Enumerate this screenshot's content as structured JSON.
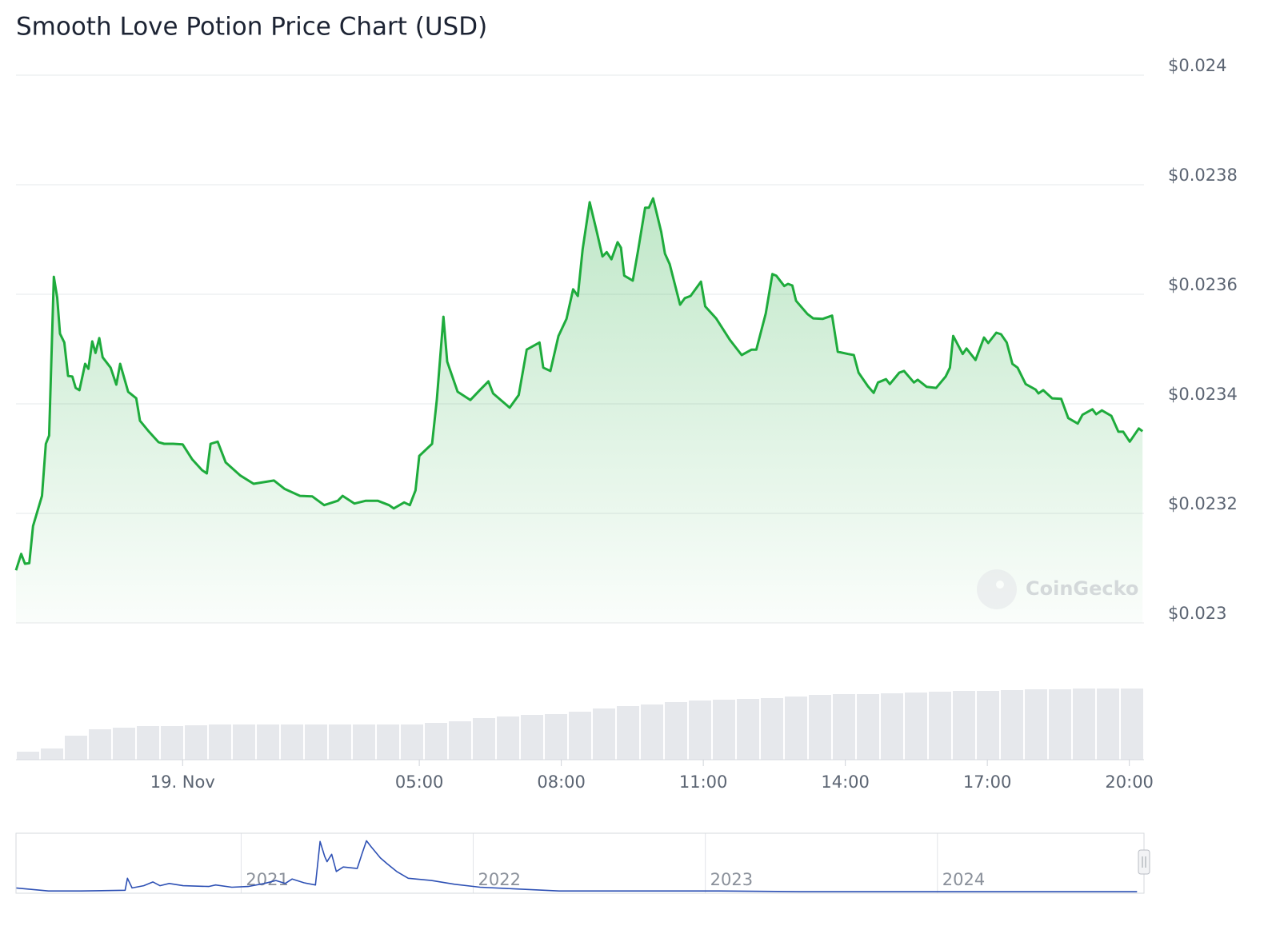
{
  "chart_data": {
    "type": "line",
    "title": "Smooth Love Potion Price Chart (USD)",
    "color": "#1eab3c",
    "xlim": [
      -3.52,
      20.31
    ],
    "ylim": [
      0.023,
      0.024
    ],
    "yticks": [
      {
        "value": 0.023,
        "label": "$0.023"
      },
      {
        "value": 0.0232,
        "label": "$0.0232"
      },
      {
        "value": 0.0234,
        "label": "$0.0234"
      },
      {
        "value": 0.0236,
        "label": "$0.0236"
      },
      {
        "value": 0.0238,
        "label": "$0.0238"
      },
      {
        "value": 0.024,
        "label": "$0.024"
      }
    ],
    "xticks": [
      {
        "value": 0,
        "label": "19. Nov"
      },
      {
        "value": 5,
        "label": "05:00"
      },
      {
        "value": 8,
        "label": "08:00"
      },
      {
        "value": 11,
        "label": "11:00"
      },
      {
        "value": 14,
        "label": "14:00"
      },
      {
        "value": 17,
        "label": "17:00"
      },
      {
        "value": 20,
        "label": "20:00"
      }
    ],
    "grid": true,
    "x": [
      -3.52,
      -3.41,
      -3.33,
      -3.24,
      -3.16,
      -2.97,
      -2.89,
      -2.82,
      -2.72,
      -2.65,
      -2.59,
      -2.5,
      -2.42,
      -2.33,
      -2.26,
      -2.18,
      -2.06,
      -1.99,
      -1.91,
      -1.84,
      -1.76,
      -1.69,
      -1.52,
      -1.4,
      -1.32,
      -1.15,
      -0.98,
      -0.9,
      -0.71,
      -0.51,
      -0.39,
      -0.2,
      0,
      0.2,
      0.41,
      0.51,
      0.59,
      0.74,
      0.91,
      1.22,
      1.5,
      1.93,
      2.15,
      2.48,
      2.74,
      2.99,
      3.28,
      3.38,
      3.63,
      3.87,
      4.12,
      4.36,
      4.46,
      4.68,
      4.8,
      4.92,
      5,
      5.27,
      5.37,
      5.51,
      5.59,
      5.81,
      6.08,
      6.29,
      6.46,
      6.56,
      6.91,
      7.1,
      7.27,
      7.54,
      7.62,
      7.77,
      7.94,
      8.11,
      8.25,
      8.35,
      8.45,
      8.6,
      8.75,
      8.87,
      8.96,
      9.06,
      9.19,
      9.26,
      9.33,
      9.51,
      9.62,
      9.77,
      9.85,
      9.94,
      10.11,
      10.19,
      10.29,
      10.51,
      10.61,
      10.73,
      10.95,
      11.04,
      11.27,
      11.56,
      11.81,
      12.02,
      12.12,
      12.32,
      12.46,
      12.54,
      12.71,
      12.79,
      12.88,
      12.96,
      13.2,
      13.32,
      13.52,
      13.72,
      13.84,
      14.06,
      14.18,
      14.28,
      14.48,
      14.6,
      14.69,
      14.86,
      14.94,
      15.14,
      15.24,
      15.45,
      15.53,
      15.72,
      15.92,
      16.12,
      16.21,
      16.28,
      16.48,
      16.56,
      16.75,
      16.93,
      17.02,
      17.19,
      17.29,
      17.41,
      17.53,
      17.64,
      17.81,
      18.02,
      18.08,
      18.18,
      18.37,
      18.56,
      18.71,
      18.91,
      19.01,
      19.22,
      19.3,
      19.42,
      19.62,
      19.77,
      19.87,
      20.01,
      20.2,
      20.28
    ],
    "values": [
      0.023096,
      0.023126,
      0.023108,
      0.023109,
      0.023177,
      0.023232,
      0.023327,
      0.023342,
      0.023632,
      0.023594,
      0.023528,
      0.023512,
      0.023451,
      0.02345,
      0.023429,
      0.023425,
      0.023473,
      0.023464,
      0.023514,
      0.023493,
      0.02352,
      0.023485,
      0.023466,
      0.023435,
      0.023473,
      0.023422,
      0.02341,
      0.023369,
      0.023349,
      0.02333,
      0.023327,
      0.023327,
      0.023326,
      0.023299,
      0.023279,
      0.023273,
      0.023327,
      0.023331,
      0.023293,
      0.023269,
      0.023254,
      0.02326,
      0.023245,
      0.023232,
      0.023231,
      0.023215,
      0.023223,
      0.023232,
      0.023218,
      0.023223,
      0.023223,
      0.023215,
      0.023209,
      0.02322,
      0.023215,
      0.023242,
      0.023305,
      0.023327,
      0.023407,
      0.023559,
      0.023477,
      0.023422,
      0.023407,
      0.023426,
      0.023441,
      0.023419,
      0.023393,
      0.023416,
      0.023499,
      0.023512,
      0.023466,
      0.02346,
      0.023524,
      0.023555,
      0.023609,
      0.023597,
      0.023682,
      0.023768,
      0.023714,
      0.023669,
      0.023677,
      0.023664,
      0.023695,
      0.023685,
      0.023634,
      0.023625,
      0.023679,
      0.023758,
      0.023758,
      0.023775,
      0.023714,
      0.023674,
      0.023655,
      0.023581,
      0.023593,
      0.023597,
      0.023623,
      0.023578,
      0.023556,
      0.023517,
      0.023489,
      0.023499,
      0.023499,
      0.023565,
      0.023637,
      0.023634,
      0.023615,
      0.023619,
      0.023616,
      0.023588,
      0.023564,
      0.023556,
      0.023555,
      0.023561,
      0.023495,
      0.023491,
      0.023489,
      0.023457,
      0.023432,
      0.02342,
      0.023439,
      0.023445,
      0.023436,
      0.023457,
      0.02346,
      0.023439,
      0.023444,
      0.023431,
      0.023429,
      0.02345,
      0.023466,
      0.023524,
      0.023491,
      0.023501,
      0.02348,
      0.023521,
      0.023511,
      0.02353,
      0.023527,
      0.023512,
      0.023473,
      0.023466,
      0.023436,
      0.023426,
      0.023419,
      0.023425,
      0.02341,
      0.023409,
      0.023374,
      0.023364,
      0.02338,
      0.02339,
      0.023381,
      0.023388,
      0.023378,
      0.023349,
      0.023349,
      0.023331,
      0.023355,
      0.02335
    ],
    "volume": {
      "type": "bar",
      "color": "#e6e8ec",
      "ylim": [
        0,
        100
      ],
      "values": [
        10,
        14,
        30,
        38,
        40,
        42,
        42,
        43,
        44,
        44,
        44,
        44,
        44,
        44,
        44,
        44,
        44,
        46,
        48,
        52,
        54,
        56,
        57,
        60,
        64,
        67,
        69,
        72,
        74,
        75,
        76,
        77,
        79,
        81,
        82,
        82,
        83,
        84,
        85,
        86,
        86,
        87,
        88,
        88,
        89,
        89,
        89
      ]
    },
    "navigator": {
      "type": "line",
      "color": "#2d50b4",
      "xlim": [
        2020.03,
        2024.89
      ],
      "ylim": [
        0,
        80
      ],
      "xticks": [
        2021,
        2022,
        2023,
        2024
      ],
      "x": [
        2020.03,
        2020.17,
        2020.31,
        2020.5,
        2020.51,
        2020.53,
        2020.58,
        2020.62,
        2020.65,
        2020.69,
        2020.75,
        2020.86,
        2020.89,
        2020.96,
        2021.03,
        2021.1,
        2021.15,
        2021.19,
        2021.22,
        2021.27,
        2021.32,
        2021.34,
        2021.36,
        2021.37,
        2021.39,
        2021.41,
        2021.44,
        2021.5,
        2021.52,
        2021.54,
        2021.56,
        2021.6,
        2021.63,
        2021.67,
        2021.72,
        2021.82,
        2021.92,
        2022.03,
        2022.17,
        2022.37,
        2022.72,
        2023.06,
        2023.41,
        2023.75,
        2024.1,
        2024.44,
        2024.86
      ],
      "values": [
        7,
        3,
        3,
        4,
        20,
        7,
        10,
        15,
        10,
        13,
        10,
        9,
        11,
        8,
        9,
        13,
        17,
        13,
        19,
        14,
        11,
        69,
        49,
        42,
        52,
        29,
        35,
        33,
        52,
        70,
        62,
        47,
        39,
        29,
        20,
        17,
        12,
        8,
        6,
        3,
        3,
        3,
        2,
        2,
        2,
        2,
        2
      ]
    },
    "watermark": "CoinGecko"
  }
}
